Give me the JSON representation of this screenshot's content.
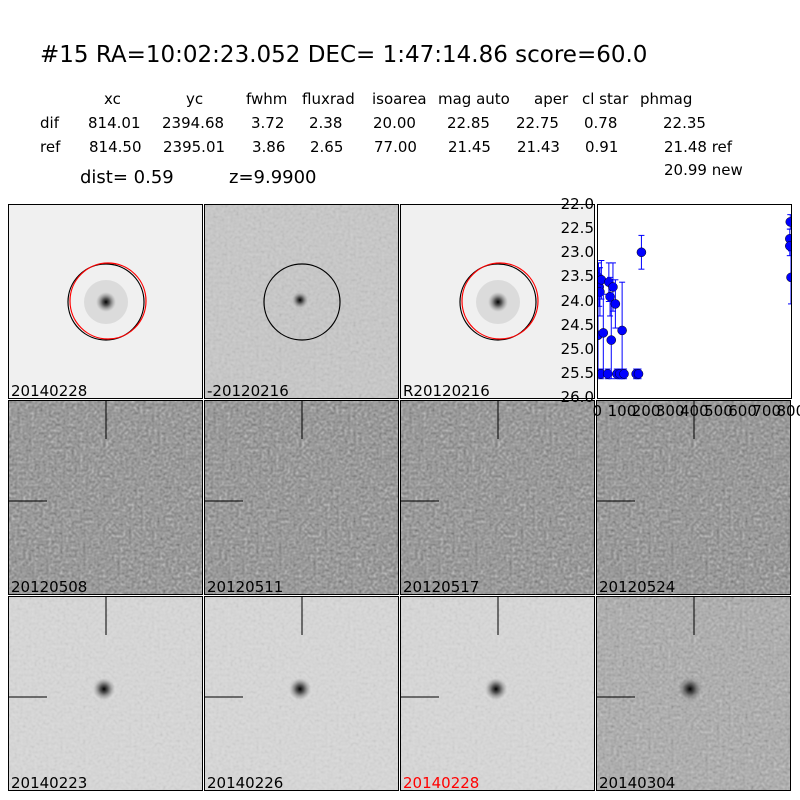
{
  "header": {
    "title": "#15   RA=10:02:23.052 DEC= 1:47:14.86      score=60.0"
  },
  "table": {
    "columns": [
      "xc",
      "yc",
      "fwhm",
      "fluxrad",
      "isoarea",
      "mag auto",
      "aper",
      "cl star",
      "phmag"
    ],
    "rows": [
      {
        "label": "dif",
        "values": [
          "814.01",
          "2394.68",
          "3.72",
          "2.38",
          "20.00",
          "22.85",
          "22.75",
          "0.78",
          "22.35"
        ]
      },
      {
        "label": "ref",
        "values": [
          "814.50",
          "2395.01",
          "3.86",
          "2.65",
          "77.00",
          "21.45",
          "21.43",
          "0.91",
          "21.48 ref"
        ]
      }
    ],
    "extra": "20.99 new",
    "dist": "dist=  0.59",
    "z": "z=9.9900"
  },
  "stamps": [
    {
      "label": "20140228",
      "kind": "smooth",
      "circle": "red"
    },
    {
      "label": "-20120216",
      "kind": "diff",
      "circle": "black"
    },
    {
      "label": "R20120216",
      "kind": "smooth",
      "circle": "red"
    },
    {
      "label": "20120508",
      "kind": "noise"
    },
    {
      "label": "20120511",
      "kind": "noise"
    },
    {
      "label": "20120517",
      "kind": "noise"
    },
    {
      "label": "20120524",
      "kind": "noise"
    },
    {
      "label": "20140223",
      "kind": "src"
    },
    {
      "label": "20140226",
      "kind": "src"
    },
    {
      "label": "20140228",
      "kind": "src",
      "highlight": "#ff0000"
    },
    {
      "label": "20140304",
      "kind": "srcnoise"
    }
  ],
  "chart_data": {
    "type": "scatter",
    "xlim": [
      0,
      800
    ],
    "ylim": [
      26.0,
      22.0
    ],
    "y_inverted": true,
    "xticks": [
      "0",
      "100",
      "200",
      "300",
      "400",
      "500",
      "600",
      "700",
      "800"
    ],
    "yticks": [
      "22.0",
      "22.5",
      "23.0",
      "23.5",
      "24.0",
      "24.5",
      "25.0",
      "25.5",
      "26.0"
    ],
    "color": "#0000ff",
    "points": [
      {
        "x": 2,
        "y": 23.5,
        "err": 0.3
      },
      {
        "x": 5,
        "y": 23.7,
        "err": 0.4
      },
      {
        "x": 8,
        "y": 23.8,
        "err": 0.5
      },
      {
        "x": 14,
        "y": 23.55,
        "err": 0.4
      },
      {
        "x": 0,
        "y": 24.7,
        "err": 0.8
      },
      {
        "x": 22,
        "y": 24.65,
        "err": 0.8
      },
      {
        "x": 12,
        "y": 25.5,
        "err": 0.1
      },
      {
        "x": 40,
        "y": 25.5,
        "err": 0.1
      },
      {
        "x": 45,
        "y": 23.6,
        "err": 0.4
      },
      {
        "x": 50,
        "y": 23.9,
        "err": 0.4
      },
      {
        "x": 55,
        "y": 24.8,
        "err": 0.8
      },
      {
        "x": 62,
        "y": 23.7,
        "err": 0.5
      },
      {
        "x": 72,
        "y": 24.05,
        "err": 0.5
      },
      {
        "x": 78,
        "y": 25.5,
        "err": 0.1
      },
      {
        "x": 90,
        "y": 25.5,
        "err": 0.1
      },
      {
        "x": 100,
        "y": 24.6,
        "err": 1.0
      },
      {
        "x": 108,
        "y": 25.5,
        "err": 0.1
      },
      {
        "x": 158,
        "y": 25.5,
        "err": 0.1
      },
      {
        "x": 168,
        "y": 25.5,
        "err": 0.1
      },
      {
        "x": 180,
        "y": 22.98,
        "err": 0.35
      },
      {
        "x": 797,
        "y": 22.35,
        "err": 0.15
      },
      {
        "x": 795,
        "y": 22.7,
        "err": 0.2
      },
      {
        "x": 795,
        "y": 22.85,
        "err": 0.2
      },
      {
        "x": 800,
        "y": 23.5,
        "err": 0.55
      }
    ]
  }
}
